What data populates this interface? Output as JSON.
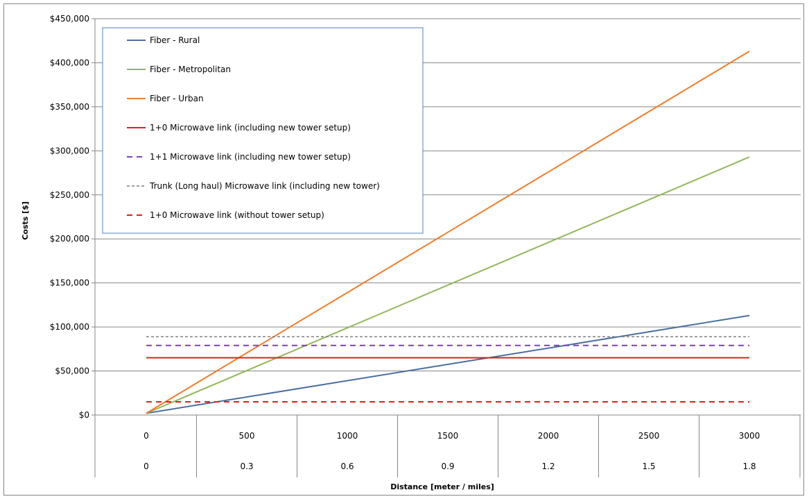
{
  "chart_data": {
    "type": "line",
    "title": "",
    "xlabel": "Distance [meter / miles]",
    "ylabel": "Costs [$]",
    "ylim": [
      0,
      450000
    ],
    "yticks": [
      0,
      50000,
      100000,
      150000,
      200000,
      250000,
      300000,
      350000,
      400000,
      450000
    ],
    "ytick_labels": [
      "$0",
      "$50,000",
      "$100,000",
      "$150,000",
      "$200,000",
      "$250,000",
      "$300,000",
      "$350,000",
      "$400,000",
      "$450,000"
    ],
    "x": [
      0,
      500,
      1000,
      1500,
      2000,
      2500,
      3000
    ],
    "x_labels_meters": [
      "0",
      "500",
      "1000",
      "1500",
      "2000",
      "2500",
      "3000"
    ],
    "x_labels_miles": [
      "0",
      "0.3",
      "0.6",
      "0.9",
      "1.2",
      "1.5",
      "1.8"
    ],
    "grid": true,
    "legend_position": "top-left",
    "series": [
      {
        "name": "Fiber - Rural",
        "color": "#4a6fa0",
        "dash": "solid",
        "values": [
          2000,
          20500,
          39000,
          57500,
          76000,
          94500,
          113000
        ]
      },
      {
        "name": "Fiber - Metropolitan",
        "color": "#94b55a",
        "dash": "solid",
        "values": [
          2000,
          50500,
          99000,
          147500,
          196000,
          244500,
          293000
        ]
      },
      {
        "name": "Fiber - Urban",
        "color": "#ec7d2c",
        "dash": "solid",
        "values": [
          2000,
          70500,
          139000,
          207500,
          276000,
          344500,
          413000
        ]
      },
      {
        "name": "1+0 Microwave link (including new tower setup)",
        "color": "#e01e1e",
        "dash": "solid",
        "values": [
          65000,
          65000,
          65000,
          65000,
          65000,
          65000,
          65000
        ]
      },
      {
        "name": "1+1 Microwave link (including new tower setup)",
        "color": "#7a3fbf",
        "dash": "dashed",
        "values": [
          79000,
          79000,
          79000,
          79000,
          79000,
          79000,
          79000
        ]
      },
      {
        "name": "Trunk (Long haul) Microwave link (including new tower)",
        "color": "#7f7f7f",
        "dash": "dotted",
        "values": [
          89000,
          89000,
          89000,
          89000,
          89000,
          89000,
          89000
        ]
      },
      {
        "name": "1+0 Microwave link (without tower setup)",
        "color": "#e01e1e",
        "dash": "dashed",
        "values": [
          15000,
          15000,
          15000,
          15000,
          15000,
          15000,
          15000
        ]
      }
    ]
  }
}
